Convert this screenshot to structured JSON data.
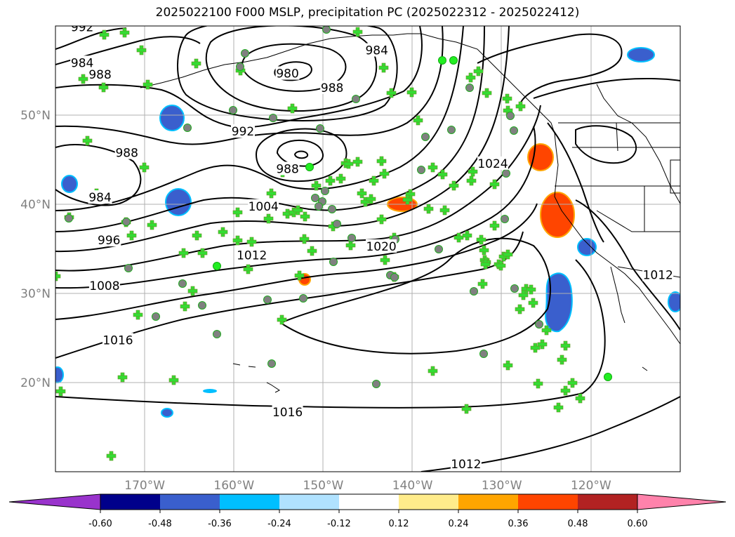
{
  "title": "2025022100 F000 MSLP, precipitation PC (2025022312 - 2025022412)",
  "map": {
    "projection": "PlateCarree",
    "extent": {
      "lon_min": -180,
      "lon_max": -110,
      "lat_min": 10,
      "lat_max": 60
    },
    "lon_ticks": [
      {
        "lon": -170,
        "label": "170°W"
      },
      {
        "lon": -160,
        "label": "160°W"
      },
      {
        "lon": -150,
        "label": "150°W"
      },
      {
        "lon": -140,
        "label": "140°W"
      },
      {
        "lon": -130,
        "label": "130°W"
      },
      {
        "lon": -120,
        "label": "120°W"
      }
    ],
    "lat_ticks": [
      {
        "lat": 50,
        "label": "50°N"
      },
      {
        "lat": 40,
        "label": "40°N"
      },
      {
        "lat": 30,
        "label": "30°N"
      },
      {
        "lat": 20,
        "label": "20°N"
      }
    ],
    "gridlines": true,
    "contour_labels": [
      {
        "text": "992",
        "lon": -177,
        "lat": 59.8
      },
      {
        "text": "984",
        "lon": -177,
        "lat": 55.8
      },
      {
        "text": "988",
        "lon": -175,
        "lat": 54.5
      },
      {
        "text": "980",
        "lon": -154,
        "lat": 54.6
      },
      {
        "text": "988",
        "lon": -149,
        "lat": 53
      },
      {
        "text": "984",
        "lon": -144,
        "lat": 57.2
      },
      {
        "text": "992",
        "lon": -159,
        "lat": 48.1
      },
      {
        "text": "988",
        "lon": -172,
        "lat": 45.7
      },
      {
        "text": "988",
        "lon": -154,
        "lat": 43.9
      },
      {
        "text": "984",
        "lon": -175,
        "lat": 40.7
      },
      {
        "text": "1004",
        "lon": -156.7,
        "lat": 39.7
      },
      {
        "text": "996",
        "lon": -174,
        "lat": 35.9
      },
      {
        "text": "1012",
        "lon": -158,
        "lat": 34.2
      },
      {
        "text": "1020",
        "lon": -143.5,
        "lat": 35.2
      },
      {
        "text": "1024",
        "lon": -131,
        "lat": 44.5
      },
      {
        "text": "1008",
        "lon": -174.5,
        "lat": 30.8
      },
      {
        "text": "1016",
        "lon": -173,
        "lat": 24.7
      },
      {
        "text": "1016",
        "lon": -154,
        "lat": 16.6
      },
      {
        "text": "1012",
        "lon": -134,
        "lat": 10.8
      },
      {
        "text": "1012",
        "lon": -112.5,
        "lat": 32
      }
    ],
    "legend": {
      "colorbar": {
        "orientation": "horizontal",
        "extend": "both",
        "ticks": [
          "-0.60",
          "-0.48",
          "-0.36",
          "-0.24",
          "-0.12",
          "0.12",
          "0.24",
          "0.36",
          "0.48",
          "0.60"
        ],
        "colors": [
          "#9933cc",
          "#00008b",
          "#3a5fcd",
          "#00bfff",
          "#b0e2ff",
          "#ffffff",
          "#ffec8b",
          "#ffa500",
          "#ff4500",
          "#b22222",
          "#ff82ab"
        ]
      }
    },
    "markers": {
      "plus_color": "#33dd33",
      "dot_gray_color": "#808080",
      "dot_green_color": "#22ee22"
    }
  }
}
